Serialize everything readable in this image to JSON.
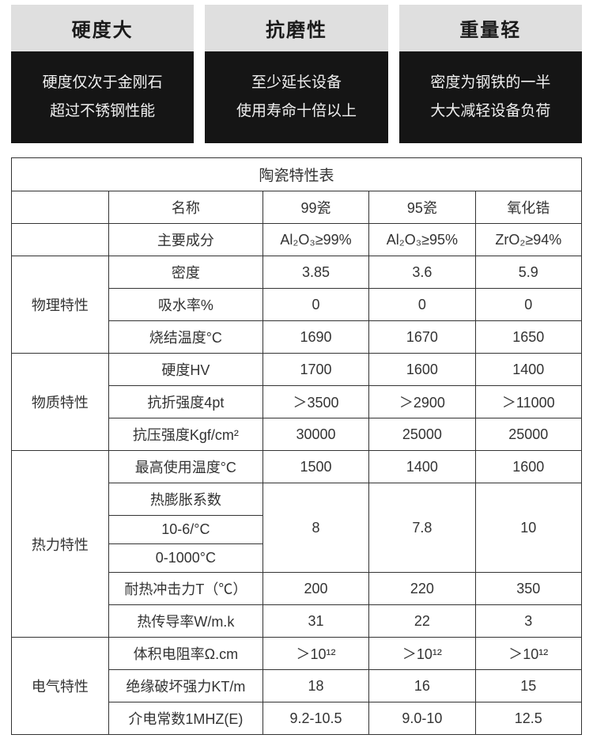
{
  "cards": [
    {
      "title": "硬度大",
      "line1": "硬度仅次于金刚石",
      "line2": "超过不锈钢性能"
    },
    {
      "title": "抗磨性",
      "line1": "至少延长设备",
      "line2": "使用寿命十倍以上"
    },
    {
      "title": "重量轻",
      "line1": "密度为钢铁的一半",
      "line2": "大大减轻设备负荷"
    }
  ],
  "table": {
    "title": "陶瓷特性表",
    "header": {
      "name": "名称",
      "c1": "99瓷",
      "c2": "95瓷",
      "c3": "氧化锆"
    },
    "comp": {
      "label": "主要成分",
      "c1": "Al₂O₃≥99%",
      "c2": "Al₂O₃≥95%",
      "c3": "ZrO₂≥94%"
    },
    "groups": {
      "g1": "物理特性",
      "g2": "物质特性",
      "g3": "热力特性",
      "g4": "电气特性"
    },
    "rows": {
      "density": {
        "label": "密度",
        "c1": "3.85",
        "c2": "3.6",
        "c3": "5.9"
      },
      "absorb": {
        "label": "吸水率%",
        "c1": "0",
        "c2": "0",
        "c3": "0"
      },
      "sinter": {
        "label": "烧结温度°C",
        "c1": "1690",
        "c2": "1670",
        "c3": "1650"
      },
      "hv": {
        "label": "硬度HV",
        "c1": "1700",
        "c2": "1600",
        "c3": "1400"
      },
      "bend": {
        "label": "抗折强度4pt",
        "c1": "＞3500",
        "c2": "＞2900",
        "c3": "＞11000"
      },
      "compr": {
        "label": "抗压强度Kgf/cm²",
        "c1": "30000",
        "c2": "25000",
        "c3": "25000"
      },
      "maxT": {
        "label": "最高使用温度°C",
        "c1": "1500",
        "c2": "1400",
        "c3": "1600"
      },
      "cte1": {
        "label": "热膨胀系数"
      },
      "cte2": {
        "label": "10-6/°C"
      },
      "cte3": {
        "label": "0-1000°C"
      },
      "cteVal": {
        "c1": "8",
        "c2": "7.8",
        "c3": "10"
      },
      "shock": {
        "label": "耐热冲击力T（℃）",
        "c1": "200",
        "c2": "220",
        "c3": "350"
      },
      "thermal": {
        "label": "热传导率W/m.k",
        "c1": "31",
        "c2": "22",
        "c3": "3"
      },
      "resist": {
        "label": "体积电阻率Ω.cm",
        "c1": "＞10¹²",
        "c2": "＞10¹²",
        "c3": "＞10¹²"
      },
      "break": {
        "label": "绝缘破坏强力KT/m",
        "c1": "18",
        "c2": "16",
        "c3": "15"
      },
      "diel": {
        "label": "介电常数1MHZ(E)",
        "c1": "9.2-10.5",
        "c2": "9.0-10",
        "c3": "12.5"
      }
    }
  },
  "styling": {
    "card_title_bg": "#dfdfdf",
    "card_title_color": "#1a1a1a",
    "card_body_bg": "#151515",
    "card_body_color": "#f0f0f0",
    "table_border": "#333333",
    "table_text": "#333333",
    "table_bg": "#ffffff",
    "title_fontsize": 24,
    "body_fontsize": 19,
    "cell_fontsize": 18
  }
}
